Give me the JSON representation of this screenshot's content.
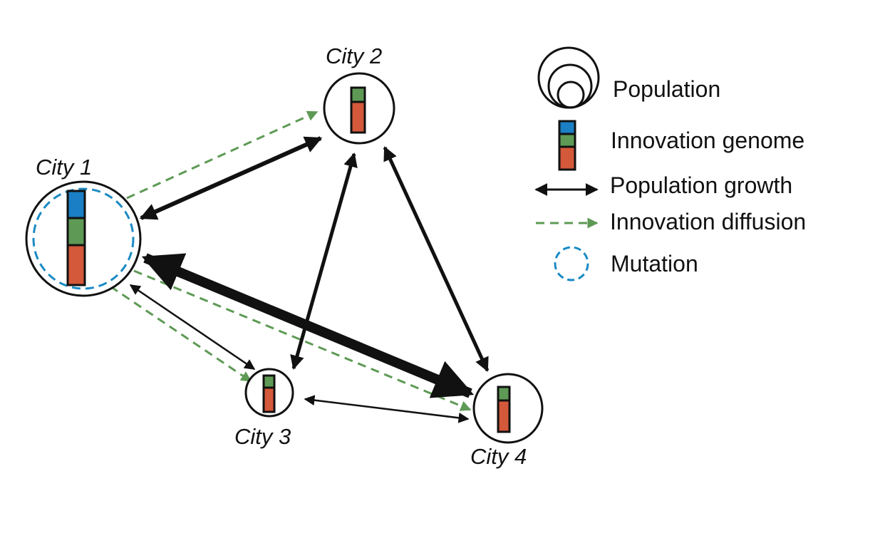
{
  "cities": [
    {
      "id": "city1",
      "label": "City 1",
      "genome": [
        "blue",
        "green",
        "orange"
      ],
      "mutation": true
    },
    {
      "id": "city2",
      "label": "City 2",
      "genome": [
        "green",
        "orange"
      ],
      "mutation": false
    },
    {
      "id": "city3",
      "label": "City 3",
      "genome": [
        "green",
        "orange"
      ],
      "mutation": false
    },
    {
      "id": "city4",
      "label": "City 4",
      "genome": [
        "green",
        "orange"
      ],
      "mutation": false
    }
  ],
  "links": [
    {
      "from": "city1",
      "to": "city2",
      "kind": "population-growth",
      "weight": "thick"
    },
    {
      "from": "city1",
      "to": "city4",
      "kind": "population-growth",
      "weight": "very-thick"
    },
    {
      "from": "city1",
      "to": "city3",
      "kind": "population-growth",
      "weight": "thin"
    },
    {
      "from": "city2",
      "to": "city3",
      "kind": "population-growth",
      "weight": "thick"
    },
    {
      "from": "city2",
      "to": "city4",
      "kind": "population-growth",
      "weight": "thick"
    },
    {
      "from": "city3",
      "to": "city4",
      "kind": "population-growth",
      "weight": "thin"
    },
    {
      "from": "city1",
      "to": "city2",
      "kind": "innovation-diffusion"
    },
    {
      "from": "city1",
      "to": "city3",
      "kind": "innovation-diffusion"
    },
    {
      "from": "city1",
      "to": "city4",
      "kind": "innovation-diffusion"
    }
  ],
  "legend": {
    "population": "Population",
    "genome": "Innovation genome",
    "growth": "Population growth",
    "diffusion": "Innovation diffusion",
    "mutation": "Mutation"
  },
  "colors": {
    "blue": "#1a7fc4",
    "green": "#5e9a55",
    "orange": "#d4583a",
    "dashed_green": "#5e9a55",
    "mutation_blue": "#1a8ac4",
    "black": "#111111"
  }
}
